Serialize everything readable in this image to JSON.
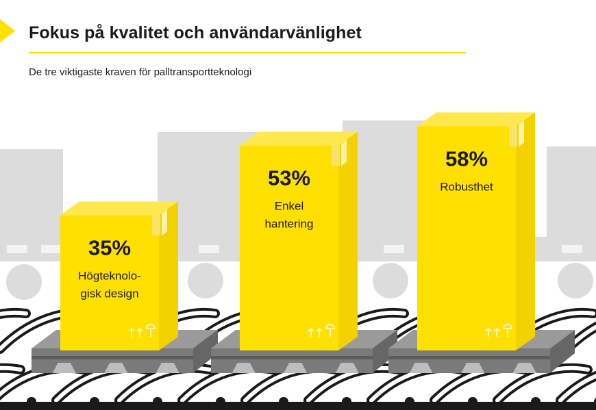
{
  "title": "Fokus på kvalitet och användarvänlighet",
  "subtitle": "De tre viktigaste kraven för palltransportteknologi",
  "colors": {
    "accent": "#FFE000",
    "box_front": "#FFE000",
    "box_side": "#F2D200",
    "box_top": "#FFE84D",
    "pallet": "#7a7a7a",
    "background_shapes": "#dcdcdc",
    "text": "#1a1a1a"
  },
  "chart_data": {
    "type": "bar",
    "categories": [
      "Högteknologisk design",
      "Enkel hantering",
      "Robusthet"
    ],
    "values": [
      35,
      53,
      58
    ],
    "unit": "%",
    "value_labels": [
      "35%",
      "53%",
      "58%"
    ],
    "category_labels": [
      [
        "Högteknolo-",
        "gisk design"
      ],
      [
        "Enkel",
        "hantering"
      ],
      [
        "Robusthet"
      ]
    ]
  }
}
